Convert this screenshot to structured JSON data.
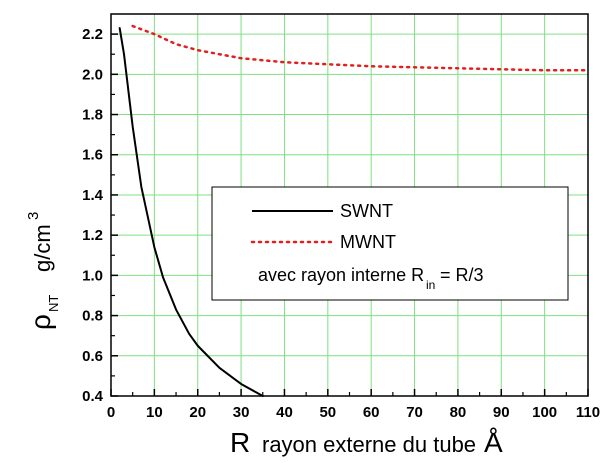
{
  "chart_data": {
    "type": "line",
    "xlabel": {
      "symbol": "R",
      "text": "rayon externe du tube",
      "unit": "Å"
    },
    "ylabel": {
      "symbol": "ρ",
      "subscript": "NT",
      "unit_main": "g/cm",
      "unit_superscript": "3"
    },
    "xlim": [
      0,
      110
    ],
    "ylim": [
      0.4,
      2.3
    ],
    "x_ticks": [
      "0",
      "10",
      "20",
      "30",
      "40",
      "50",
      "60",
      "70",
      "80",
      "90",
      "100",
      "110"
    ],
    "y_ticks": [
      "0.4",
      "0.6",
      "0.8",
      "1.0",
      "1.2",
      "1.4",
      "1.6",
      "1.8",
      "2.0",
      "2.2"
    ],
    "grid": true,
    "legend_position": "center-right",
    "series": [
      {
        "name": "SWNT",
        "color": "#000000",
        "style": "solid",
        "x": [
          2,
          3,
          5,
          7,
          10,
          12,
          15,
          18,
          20,
          25,
          30,
          35
        ],
        "y": [
          2.23,
          2.1,
          1.74,
          1.44,
          1.14,
          0.99,
          0.83,
          0.71,
          0.65,
          0.54,
          0.46,
          0.4
        ]
      },
      {
        "name": "MWNT",
        "color": "#e0201e",
        "style": "dotted",
        "x": [
          5,
          10,
          15,
          20,
          25,
          30,
          40,
          50,
          60,
          70,
          80,
          90,
          100,
          110
        ],
        "y": [
          2.24,
          2.2,
          2.15,
          2.12,
          2.1,
          2.08,
          2.06,
          2.05,
          2.04,
          2.035,
          2.03,
          2.025,
          2.02,
          2.02
        ]
      }
    ],
    "legend": {
      "annotation": {
        "text": "avec rayon interne R",
        "subscript": "in",
        "suffix": " = R/3"
      }
    }
  },
  "colors": {
    "grid": "#7fe07f",
    "axis": "#000000",
    "swnt": "#000000",
    "mwnt": "#e0201e"
  }
}
